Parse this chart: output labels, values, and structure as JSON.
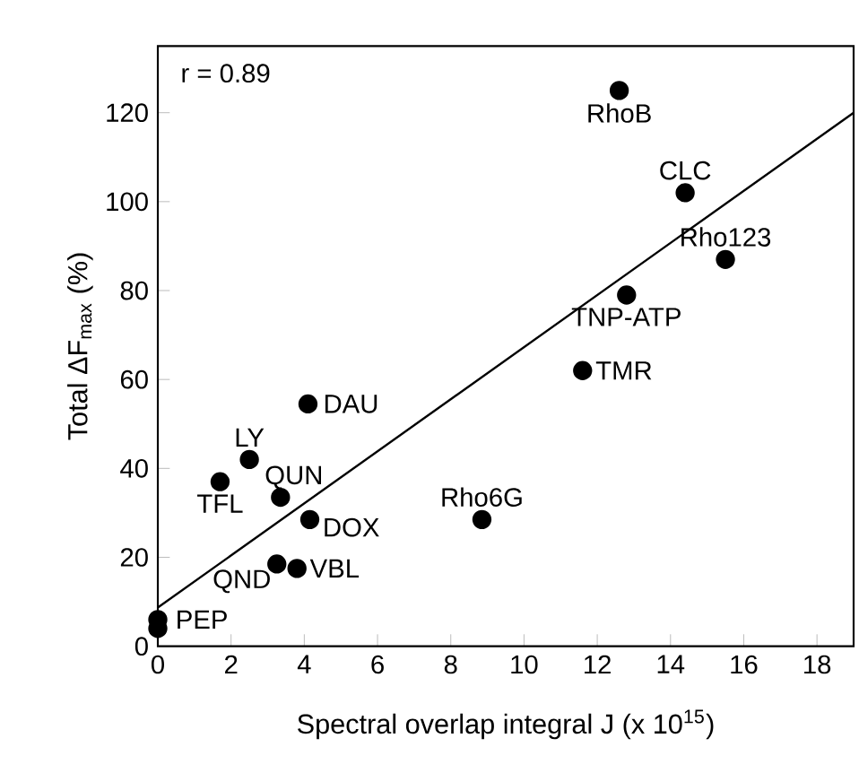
{
  "chart_data": {
    "type": "scatter",
    "xlabel": "Spectral overlap integral J (x 10$^{15}$)",
    "ylabel": "Total ΔF$_{max}$ (%)",
    "xlim": [
      0,
      19
    ],
    "ylim": [
      0,
      135
    ],
    "xticks": [
      0,
      2,
      4,
      6,
      8,
      10,
      12,
      14,
      16,
      18
    ],
    "yticks": [
      0,
      20,
      40,
      60,
      80,
      100,
      120
    ],
    "marker": "circle",
    "grid": false,
    "series": [
      {
        "color": "#000000",
        "x": [
          12.6,
          14.4,
          15.5,
          12.8,
          11.6,
          8.85,
          4.1,
          2.5,
          1.7,
          3.35,
          4.15,
          3.25,
          3.8,
          0,
          0
        ],
        "values": [
          125,
          102,
          87,
          79,
          62,
          28.5,
          54.5,
          42,
          37,
          33.5,
          28.5,
          18.5,
          17.5,
          6,
          4
        ]
      },
      {
        "type": "line",
        "color": "#000000",
        "marker": "none",
        "line_style": "solid",
        "x": [
          0,
          19
        ],
        "values": [
          8.7,
          120
        ]
      }
    ],
    "annotations": [
      "r = 0.89",
      {
        "text": "RhoB",
        "x": 12.6,
        "y": 125
      },
      {
        "text": "CLC",
        "x": 14.4,
        "y": 102
      },
      {
        "text": "Rho123",
        "x": 15.5,
        "y": 87
      },
      {
        "text": "TNP-ATP",
        "x": 12.8,
        "y": 79
      },
      {
        "text": "TMR",
        "x": 11.6,
        "y": 62
      },
      {
        "text": "Rho6G",
        "x": 8.85,
        "y": 28.5
      },
      {
        "text": "DAU",
        "x": 4.1,
        "y": 54.5
      },
      {
        "text": "LY",
        "x": 2.5,
        "y": 42
      },
      {
        "text": "TFL",
        "x": 1.7,
        "y": 37
      },
      {
        "text": "QUN",
        "x": 3.35,
        "y": 33.5
      },
      {
        "text": "DOX",
        "x": 4.15,
        "y": 28.5
      },
      {
        "text": "QND",
        "x": 3.25,
        "y": 18.5
      },
      {
        "text": "VBL",
        "x": 3.8,
        "y": 17.5
      },
      {
        "text": "PEP",
        "x": 0,
        "y": 6
      }
    ]
  }
}
